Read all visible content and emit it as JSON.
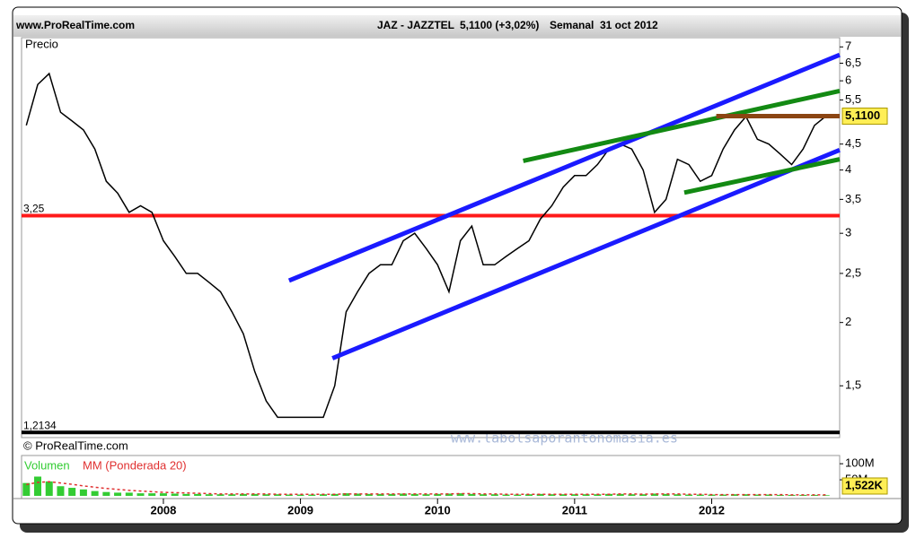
{
  "header": {
    "site": "www.ProRealTime.com",
    "symbol": "JAZ - JAZZTEL",
    "quote": "5,1100 (+3,02%)",
    "period": "Semanal",
    "date": "31 oct 2012"
  },
  "copyright": "© ProRealTime.com",
  "watermark": "www.labolsaporantonomasia.es",
  "chart_data": [
    {
      "type": "line",
      "label": "Precio",
      "color": "#000000",
      "log": true,
      "categories": [
        null,
        null,
        null,
        null,
        null,
        null,
        null,
        null,
        null,
        null,
        null,
        null,
        "2008",
        null,
        null,
        null,
        null,
        null,
        null,
        null,
        null,
        null,
        null,
        null,
        "2009",
        null,
        null,
        null,
        null,
        null,
        null,
        null,
        null,
        null,
        null,
        null,
        "2010",
        null,
        null,
        null,
        null,
        null,
        null,
        null,
        null,
        null,
        null,
        null,
        "2011",
        null,
        null,
        null,
        null,
        null,
        null,
        null,
        null,
        null,
        null,
        null,
        "2012",
        null,
        null,
        null,
        null,
        null,
        null,
        null,
        null,
        null,
        null
      ],
      "values": [
        4.9,
        5.9,
        6.2,
        5.2,
        5.0,
        4.8,
        4.4,
        3.8,
        3.6,
        3.3,
        3.4,
        3.3,
        2.9,
        2.7,
        2.5,
        2.5,
        2.4,
        2.3,
        2.1,
        1.9,
        1.6,
        1.4,
        1.3,
        1.3,
        1.3,
        1.3,
        1.3,
        1.5,
        2.1,
        2.3,
        2.5,
        2.6,
        2.6,
        2.9,
        3.0,
        2.8,
        2.6,
        2.3,
        2.9,
        3.1,
        2.6,
        2.6,
        2.7,
        2.8,
        2.9,
        3.2,
        3.4,
        3.7,
        3.9,
        3.9,
        4.1,
        4.4,
        4.5,
        4.4,
        4.0,
        3.3,
        3.5,
        4.2,
        4.1,
        3.8,
        3.9,
        4.4,
        4.8,
        5.1,
        4.6,
        4.5,
        4.3,
        4.1,
        4.4,
        4.9,
        5.11
      ],
      "ylim": [
        1.2,
        7.3
      ],
      "yticks": [
        {
          "value": 1.5,
          "label": "1,5"
        },
        2,
        {
          "value": 2.5,
          "label": "2,5"
        },
        3,
        {
          "value": 3.5,
          "label": "3,5"
        },
        4,
        {
          "value": 4.5,
          "label": "4,5"
        },
        {
          "value": 5.5,
          "label": "5,5"
        },
        6,
        {
          "value": 6.5,
          "label": "6,5"
        },
        7
      ],
      "hlines": [
        {
          "value": 3.25,
          "label": "3,25",
          "color": "#ff1a1a"
        },
        {
          "value": 1.2134,
          "label": "1,2134",
          "color": "#000000"
        }
      ],
      "trendlines": [
        {
          "color": "#1a1aff",
          "x": [
            23.0,
            71.2
          ],
          "y": [
            2.42,
            6.75
          ]
        },
        {
          "color": "#1a1aff",
          "x": [
            26.8,
            71.2
          ],
          "y": [
            1.7,
            4.38
          ]
        },
        {
          "color": "#138a13",
          "x": [
            43.5,
            71.2
          ],
          "y": [
            4.17,
            5.73
          ]
        },
        {
          "color": "#138a13",
          "x": [
            57.6,
            71.2
          ],
          "y": [
            3.61,
            4.2
          ]
        },
        {
          "color": "#8b4513",
          "x": [
            60.4,
            71.2
          ],
          "y": [
            5.11,
            5.11
          ]
        }
      ],
      "last_label": {
        "value": 5.11,
        "label": "5,1100"
      }
    },
    {
      "type": "bar",
      "series": [
        {
          "name": "Volumen",
          "color": "#33cc33",
          "values": [
            40,
            60,
            45,
            30,
            25,
            20,
            15,
            12,
            10,
            10,
            8,
            8,
            8,
            7,
            6,
            6,
            5,
            5,
            5,
            6,
            6,
            5,
            5,
            4,
            4,
            4,
            5,
            6,
            8,
            7,
            6,
            6,
            6,
            7,
            6,
            5,
            6,
            7,
            8,
            6,
            5,
            5,
            4,
            4,
            5,
            6,
            5,
            5,
            5,
            5,
            5,
            6,
            6,
            5,
            5,
            7,
            6,
            5,
            4,
            4,
            4,
            4,
            5,
            5,
            4,
            4,
            3,
            3,
            3,
            3,
            2
          ]
        },
        {
          "name": "MM (Ponderada 20)",
          "color": "#e03030",
          "values": [
            35,
            42,
            44,
            40,
            36,
            31,
            27,
            23,
            20,
            17,
            15,
            13,
            11,
            10,
            9,
            8,
            7,
            6,
            6,
            6,
            6,
            6,
            5,
            5,
            5,
            5,
            5,
            5,
            6,
            6,
            6,
            6,
            6,
            6,
            6,
            6,
            6,
            6,
            7,
            7,
            6,
            6,
            5,
            5,
            5,
            5,
            5,
            5,
            5,
            5,
            5,
            5,
            6,
            6,
            5,
            6,
            6,
            6,
            5,
            5,
            4,
            4,
            4,
            4,
            4,
            4,
            4,
            3,
            3,
            3,
            3
          ]
        }
      ],
      "ylim": [
        0,
        120
      ],
      "yticks": [
        {
          "value": 50,
          "label": "50M"
        },
        {
          "value": 100,
          "label": "100M"
        }
      ],
      "last_label": {
        "value": 1.522,
        "label": "1,522K"
      }
    }
  ]
}
